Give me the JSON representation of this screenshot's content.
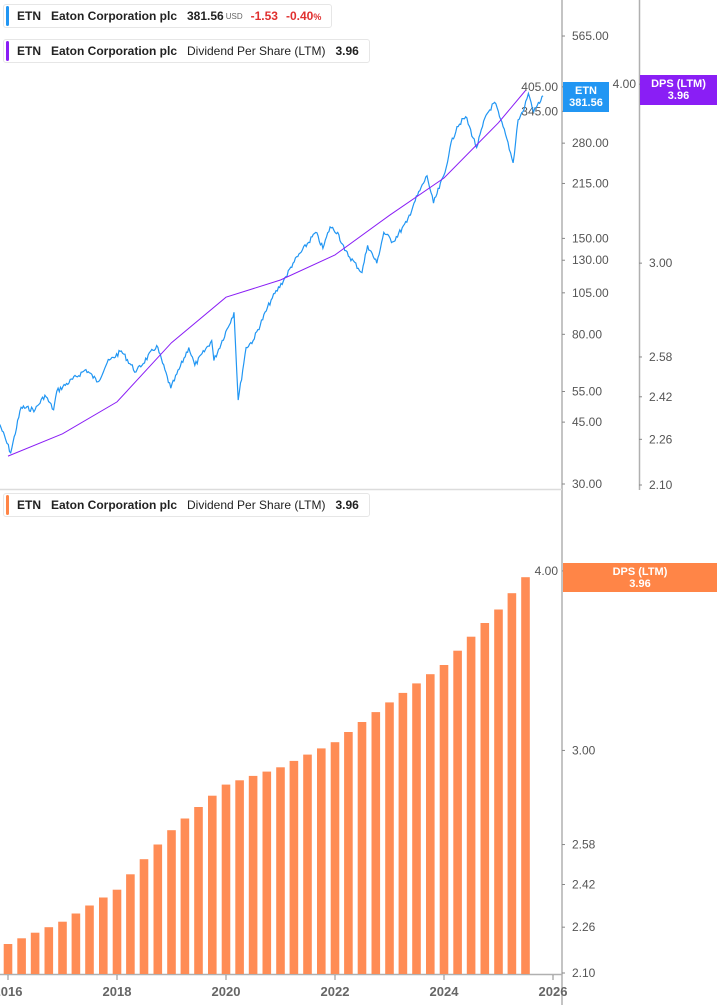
{
  "colors": {
    "price": "#2196f3",
    "dps_line": "#8a1ef5",
    "dps_bar": "#ff8c55",
    "dps_tag_bottom": "#ff8547",
    "negative": "#e0302f"
  },
  "legend_price": {
    "ticker": "ETN",
    "name": "Eaton Corporation plc",
    "price": "381.56",
    "currency": "USD",
    "change": "-1.53",
    "change_pct": "-0.40",
    "pct_sign": "%"
  },
  "legend_dps_top": {
    "ticker": "ETN",
    "name": "Eaton Corporation plc",
    "metric": "Dividend Per Share (LTM)",
    "value": "3.96"
  },
  "legend_dps_bottom": {
    "ticker": "ETN",
    "name": "Eaton Corporation plc",
    "metric": "Dividend Per Share (LTM)",
    "value": "3.96"
  },
  "tags": {
    "price": {
      "label": "ETN",
      "value": "381.56"
    },
    "dps_top": {
      "label": "DPS (LTM)",
      "value": "3.96"
    },
    "dps_bottom": {
      "label": "DPS (LTM)",
      "value": "3.96"
    }
  },
  "chart_data": [
    {
      "type": "line",
      "scale": "log",
      "series": [
        {
          "name": "ETN",
          "axis": "price",
          "points": [
            [
              "2015-11-07",
              44.3
            ],
            [
              "2016-01-19",
              36.8
            ],
            [
              "2016-03-29",
              49.6
            ],
            [
              "2016-07-01",
              48.8
            ],
            [
              "2016-09-05",
              53.7
            ],
            [
              "2016-11-02",
              48.8
            ],
            [
              "2016-11-24",
              55.1
            ],
            [
              "2017-06-07",
              63.5
            ],
            [
              "2017-08-26",
              58.6
            ],
            [
              "2017-10-27",
              66.4
            ],
            [
              "2018-01-30",
              71.7
            ],
            [
              "2018-05-08",
              62.5
            ],
            [
              "2018-09-24",
              74.3
            ],
            [
              "2018-12-27",
              56.2
            ],
            [
              "2019-04-27",
              73.4
            ],
            [
              "2019-06-06",
              65.3
            ],
            [
              "2019-09-27",
              76.8
            ],
            [
              "2019-10-12",
              67.4
            ],
            [
              "2020-02-24",
              92.4
            ],
            [
              "2020-03-23",
              52.0
            ],
            [
              "2020-05-15",
              73.4
            ],
            [
              "2020-07-01",
              76.8
            ],
            [
              "2020-10-30",
              100.2
            ],
            [
              "2021-02-06",
              116.8
            ],
            [
              "2021-03-26",
              127.5
            ],
            [
              "2021-08-25",
              156
            ],
            [
              "2021-10-12",
              140.5
            ],
            [
              "2021-11-29",
              161.7
            ],
            [
              "2022-01-19",
              156
            ],
            [
              "2022-03-07",
              138.6
            ],
            [
              "2022-07-01",
              119.9
            ],
            [
              "2022-08-07",
              143.3
            ],
            [
              "2022-10-08",
              127.5
            ],
            [
              "2022-11-24",
              156
            ],
            [
              "2023-01-23",
              146.7
            ],
            [
              "2023-04-27",
              166.8
            ],
            [
              "2023-06-14",
              189
            ],
            [
              "2023-09-09",
              226
            ],
            [
              "2023-10-23",
              189
            ],
            [
              "2024-01-08",
              231
            ],
            [
              "2024-02-10",
              272
            ],
            [
              "2024-03-28",
              312
            ],
            [
              "2024-05-26",
              333
            ],
            [
              "2024-08-07",
              272
            ],
            [
              "2024-10-09",
              336
            ],
            [
              "2024-12-06",
              366
            ],
            [
              "2025-01-08",
              333
            ],
            [
              "2025-02-25",
              289
            ],
            [
              "2025-04-09",
              246
            ],
            [
              "2025-05-12",
              326
            ],
            [
              "2025-06-14",
              344
            ],
            [
              "2025-07-20",
              388
            ],
            [
              "2025-08-25",
              344
            ],
            [
              "2025-10-27",
              381.56
            ]
          ]
        },
        {
          "name": "Dividend Per Share (LTM)",
          "axis": "dps",
          "points": [
            [
              "2016-01",
              2.2
            ],
            [
              "2017-01",
              2.28
            ],
            [
              "2018-01",
              2.4
            ],
            [
              "2019-01",
              2.64
            ],
            [
              "2020-01",
              2.84
            ],
            [
              "2021-01",
              2.92
            ],
            [
              "2022-01",
              3.04
            ],
            [
              "2023-01",
              3.24
            ],
            [
              "2024-01",
              3.44
            ],
            [
              "2025-01",
              3.76
            ],
            [
              "2025-07",
              3.96
            ]
          ]
        }
      ],
      "price_axis_ticks": [
        "565.00",
        "405.00",
        "345.00",
        "280.00",
        "215.00",
        "150.00",
        "130.00",
        "105.00",
        "80.00",
        "55.00",
        "45.00",
        "30.00"
      ],
      "dps_axis_ticks": [
        "4.00",
        "3.00",
        "2.58",
        "2.42",
        "2.26",
        "2.10"
      ],
      "price_range": [
        30,
        565
      ],
      "dps_range": [
        2.1,
        4.0
      ],
      "grid": false
    },
    {
      "type": "bar",
      "scale": "log",
      "series": [
        {
          "name": "Dividend Per Share (LTM)",
          "dates": [
            "2016-01",
            "2016-04",
            "2016-07",
            "2016-10",
            "2017-01",
            "2017-04",
            "2017-07",
            "2017-10",
            "2018-01",
            "2018-04",
            "2018-07",
            "2018-10",
            "2019-01",
            "2019-04",
            "2019-07",
            "2019-10",
            "2020-01",
            "2020-04",
            "2020-07",
            "2020-10",
            "2021-01",
            "2021-04",
            "2021-07",
            "2021-10",
            "2022-01",
            "2022-04",
            "2022-07",
            "2022-10",
            "2023-01",
            "2023-04",
            "2023-07",
            "2023-10",
            "2024-01",
            "2024-04",
            "2024-07",
            "2024-10",
            "2025-01",
            "2025-04",
            "2025-07"
          ],
          "values": [
            2.2,
            2.22,
            2.24,
            2.26,
            2.28,
            2.31,
            2.34,
            2.37,
            2.4,
            2.46,
            2.52,
            2.58,
            2.64,
            2.69,
            2.74,
            2.79,
            2.84,
            2.86,
            2.88,
            2.9,
            2.92,
            2.95,
            2.98,
            3.01,
            3.04,
            3.09,
            3.14,
            3.19,
            3.24,
            3.29,
            3.34,
            3.39,
            3.44,
            3.52,
            3.6,
            3.68,
            3.76,
            3.86,
            3.96
          ]
        }
      ],
      "y_ticks": [
        "4.00",
        "3.00",
        "2.58",
        "2.42",
        "2.26",
        "2.10"
      ],
      "ylim": [
        2.1,
        4.0
      ],
      "x_ticks": [
        "2016",
        "2018",
        "2020",
        "2022",
        "2024",
        "2026"
      ],
      "grid": false
    }
  ]
}
